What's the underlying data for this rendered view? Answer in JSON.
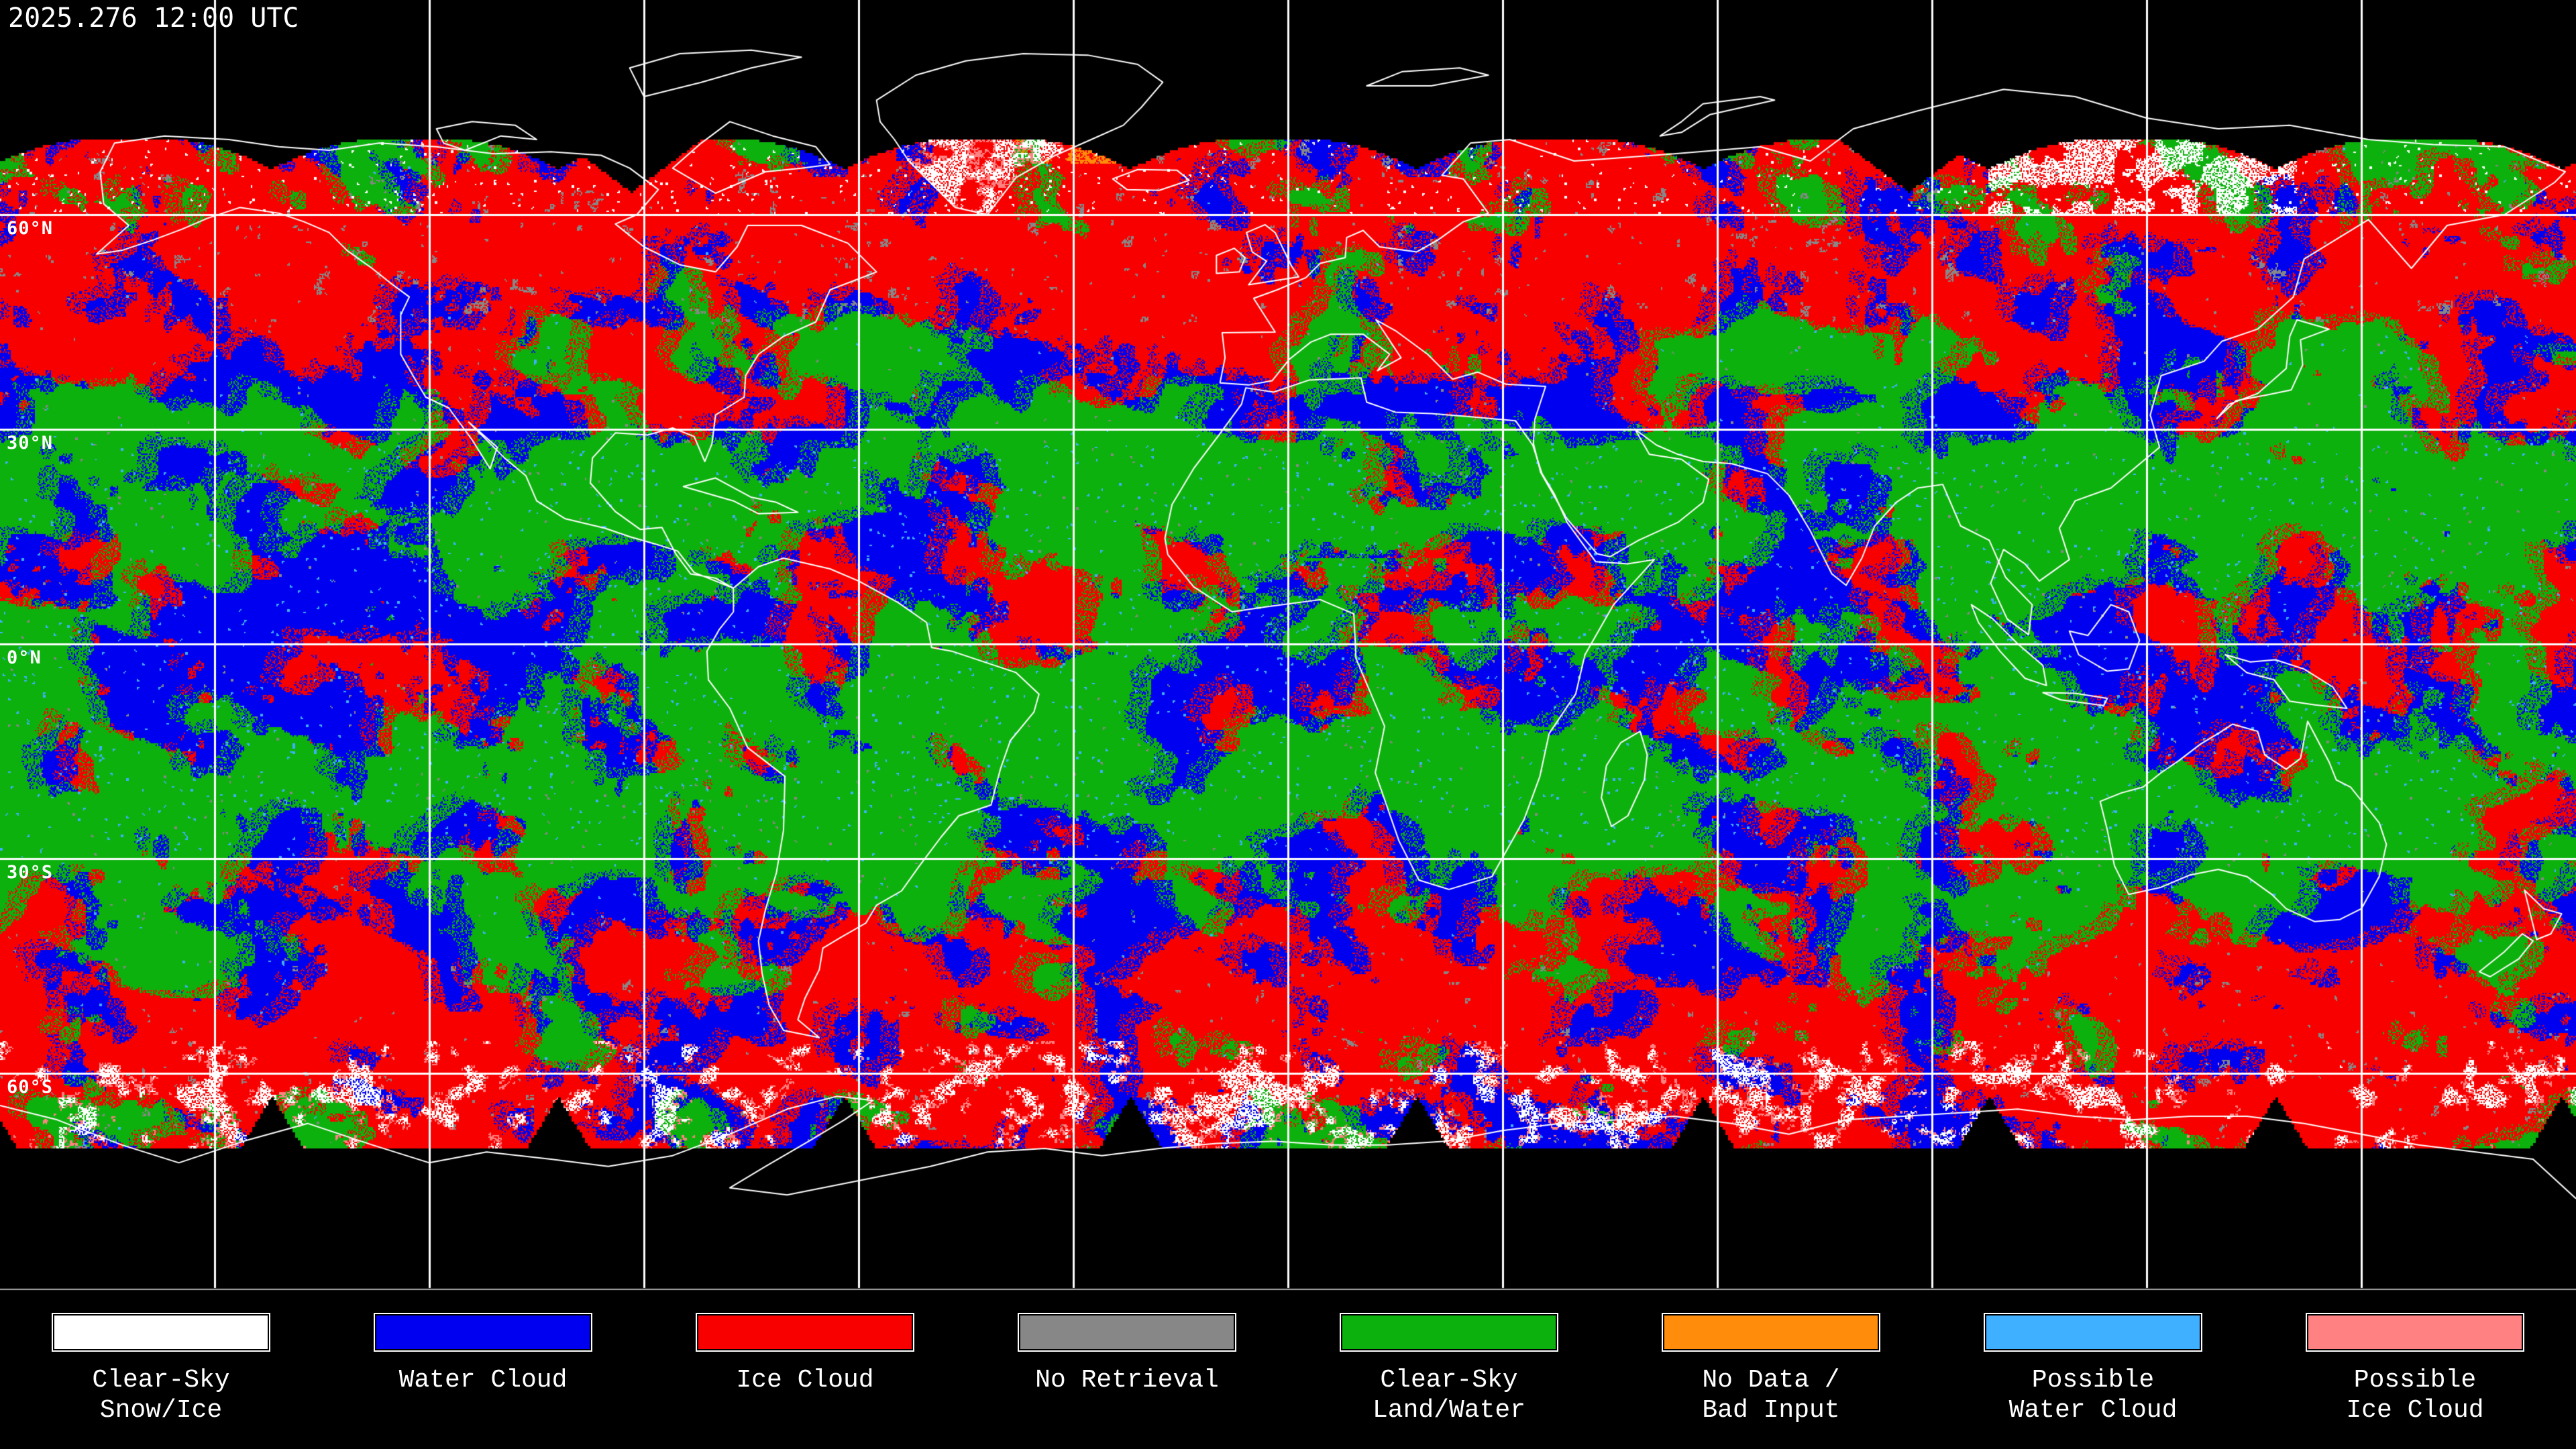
{
  "header": {
    "timestamp": "2025.276 12:00 UTC"
  },
  "map": {
    "projection": "equirectangular",
    "latitude_labels": [
      {
        "text": "60°N",
        "lat": 60
      },
      {
        "text": "30°N",
        "lat": 30
      },
      {
        "text": "0°N",
        "lat": 0
      },
      {
        "text": "30°S",
        "lat": -30
      },
      {
        "text": "60°S",
        "lat": -60
      }
    ],
    "grid": {
      "lon_step_deg": 30,
      "lat_step_deg": 30,
      "color": "#ffffff"
    },
    "colors": {
      "background": "#000000",
      "coastline": "#ffffff",
      "grid": "#ffffff",
      "divider": "#a8a8a8",
      "water_cloud": "#0000f0",
      "ice_cloud": "#f80000",
      "clear_sky_land_water": "#0db10d",
      "clear_sky_snow_ice": "#ffffff",
      "no_retrieval": "#878787",
      "no_data_bad_input": "#ff8c0a",
      "possible_water_cloud": "#3fafff",
      "possible_ice_cloud": "#ff8181"
    }
  },
  "legend": {
    "items": [
      {
        "key": "clear-sky-snow-ice",
        "label_lines": [
          "Clear-Sky",
          "Snow/Ice"
        ],
        "color": "#ffffff"
      },
      {
        "key": "water-cloud",
        "label_lines": [
          "Water Cloud"
        ],
        "color": "#0000f0"
      },
      {
        "key": "ice-cloud",
        "label_lines": [
          "Ice Cloud"
        ],
        "color": "#f80000"
      },
      {
        "key": "no-retrieval",
        "label_lines": [
          "No Retrieval"
        ],
        "color": "#878787"
      },
      {
        "key": "clear-sky-land-water",
        "label_lines": [
          "Clear-Sky",
          "Land/Water"
        ],
        "color": "#0db10d"
      },
      {
        "key": "no-data-bad-input",
        "label_lines": [
          "No Data /",
          "Bad Input"
        ],
        "color": "#ff8c0a"
      },
      {
        "key": "possible-water-cloud",
        "label_lines": [
          "Possible",
          "Water Cloud"
        ],
        "color": "#3fafff"
      },
      {
        "key": "possible-ice-cloud",
        "label_lines": [
          "Possible",
          "Ice Cloud"
        ],
        "color": "#ff8181"
      }
    ]
  }
}
